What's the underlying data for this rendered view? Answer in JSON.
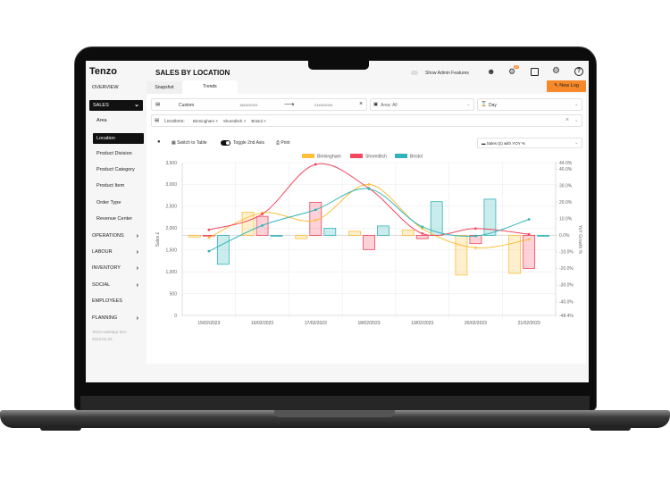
{
  "app": {
    "logo": "Tenzo",
    "page_title": "SALES BY LOCATION",
    "version": "Tenzo-webapp-dev-2023.02.20"
  },
  "header": {
    "admin_toggle_label": "Show Admin Features",
    "notification_count": "22",
    "new_log_label": "New Log",
    "icons": [
      "user-icon",
      "bell-icon",
      "note-icon",
      "gear-icon",
      "help-icon"
    ]
  },
  "tabs": [
    {
      "label": "Snapshot",
      "active": false
    },
    {
      "label": "Trends",
      "active": true
    }
  ],
  "sidebar": {
    "items": [
      {
        "label": "OVERVIEW"
      },
      {
        "label": "SALES",
        "selected": true,
        "chevron": "down"
      },
      {
        "label": "Area",
        "sub": true
      },
      {
        "label": "Location",
        "sub": true,
        "selected": true
      },
      {
        "label": "Product Division",
        "sub": true
      },
      {
        "label": "Product Category",
        "sub": true
      },
      {
        "label": "Product Item",
        "sub": true
      },
      {
        "label": "Order Type",
        "sub": true
      },
      {
        "label": "Revenue Center",
        "sub": true
      },
      {
        "label": "OPERATIONS",
        "chevron": "right"
      },
      {
        "label": "LABOUR",
        "chevron": "right"
      },
      {
        "label": "INVENTORY",
        "chevron": "right"
      },
      {
        "label": "SOCIAL",
        "chevron": "right"
      },
      {
        "label": "EMPLOYEES"
      },
      {
        "label": "PLANNING",
        "chevron": "right"
      }
    ]
  },
  "filters": {
    "date_preset": "Custom",
    "date_from": "15/02/2023",
    "date_to": "21/02/2023",
    "area": "Area: All",
    "granularity": "Day",
    "locations_label": "Locations:",
    "locations": [
      "Birmingham",
      "Shoreditch",
      "Bristol"
    ]
  },
  "toolbar": {
    "switch_label": "Switch to Table",
    "toggle_label": "Toggle 2nd Axis",
    "print_label": "Print",
    "metric": "Sales (£) with YOY %"
  },
  "chart_data": {
    "type": "bar+line",
    "grid": true,
    "legend": "top-center",
    "categories": [
      "15/02/2023",
      "16/02/2023",
      "17/02/2023",
      "18/02/2023",
      "19/02/2023",
      "20/02/2023",
      "21/02/2023"
    ],
    "ylabel": "Sales £",
    "y2label": "YoY Growth %",
    "ylim": [
      0,
      3500
    ],
    "yticks": [
      "0",
      "500",
      "1,000",
      "1,500",
      "2,000",
      "2,500",
      "3,000",
      "3,500"
    ],
    "y2lim": [
      -48.4,
      44.0
    ],
    "y2ticks": [
      "-48.4%",
      "-40.0%",
      "-30.0%",
      "-20.0%",
      "-10.0%",
      "0.0%",
      "10.0%",
      "20.0%",
      "30.0%",
      "40.0%",
      "44.0%"
    ],
    "series": [
      {
        "name": "Birmingham",
        "color": "#fbbf3c",
        "sales": [
          1780,
          2350,
          2180,
          3000,
          1990,
          1550,
          1740
        ],
        "yoy": [
          -1,
          14,
          -2,
          2.5,
          3.2,
          -24,
          -23
        ]
      },
      {
        "name": "Shoreditch",
        "color": "#f2475e",
        "sales": [
          1960,
          2320,
          3460,
          2910,
          1875,
          1990,
          1860
        ],
        "yoy": [
          0,
          11.5,
          20,
          -8.6,
          -2,
          -5,
          -20
        ]
      },
      {
        "name": "Bristol",
        "color": "#2fb5b9",
        "sales": [
          1470,
          2060,
          2420,
          2900,
          2030,
          1820,
          2200
        ],
        "yoy": [
          -17.5,
          -0.5,
          4.3,
          5.7,
          20.4,
          21.9,
          -0.5
        ]
      }
    ]
  },
  "colors": {
    "accent": "#f7892b",
    "selected": "#111111"
  }
}
